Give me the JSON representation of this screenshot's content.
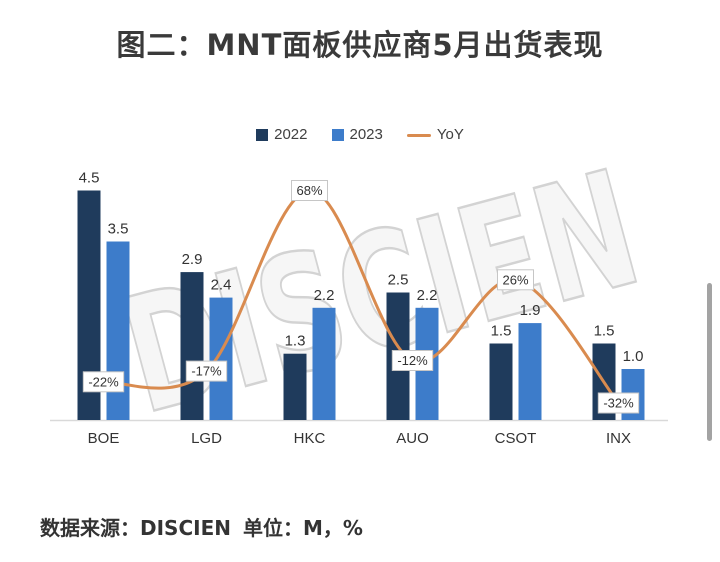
{
  "chart_data": {
    "type": "bar",
    "title": "图二：MNT面板供应商5月出货表现",
    "categories": [
      "BOE",
      "LGD",
      "HKC",
      "AUO",
      "CSOT",
      "INX"
    ],
    "ylim": [
      0,
      5
    ],
    "y2lim": [
      -40,
      80
    ],
    "grid": false,
    "legend": "top-center",
    "series": [
      {
        "name": "2022",
        "type": "bar",
        "color": "#1f3b5c",
        "values": [
          4.5,
          2.9,
          1.3,
          2.5,
          1.5,
          1.5
        ],
        "labels": [
          "4.5",
          "2.9",
          "1.3",
          "2.5",
          "1.5",
          "1.5"
        ]
      },
      {
        "name": "2023",
        "type": "bar",
        "color": "#3d7cca",
        "values": [
          3.5,
          2.4,
          2.2,
          2.2,
          1.9,
          1.0
        ],
        "labels": [
          "3.5",
          "2.4",
          "2.2",
          "2.2",
          "1.9",
          "1.0"
        ]
      },
      {
        "name": "YoY",
        "type": "line",
        "axis": "secondary",
        "smooth": true,
        "color": "#d98b4f",
        "values": [
          -22,
          -17,
          68,
          -12,
          26,
          -32
        ],
        "labels": [
          "-22%",
          "-17%",
          "68%",
          "-12%",
          "26%",
          "-32%"
        ]
      }
    ]
  },
  "footer": {
    "source": "数据来源：DISCIEN",
    "unit": "单位：M，%"
  },
  "watermark": "DISCIEN"
}
